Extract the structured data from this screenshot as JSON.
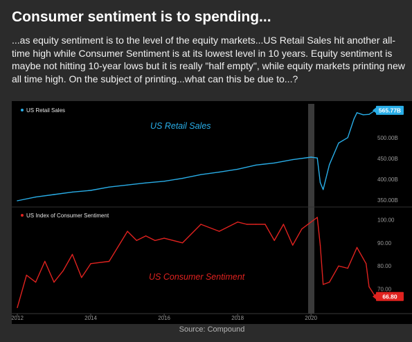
{
  "header": {
    "title": "Consumer sentiment is to spending...",
    "body": "...as equity sentiment is to the level of the equity markets...US Retail Sales hit another all-time high while Consumer Sentiment is at its lowest level in 10 years. Equity sentiment is maybe not hitting 10-year lows but it is really \"half empty\", while equity markets printing new all time high. On the subject of printing...what can this be due to...?"
  },
  "footer": {
    "source": "Source: Compound"
  },
  "colors": {
    "retail": "#29aee8",
    "sentiment": "#e0221f",
    "badge_retail": "#29aee8",
    "badge_sentiment": "#e0221f",
    "covid_band": "#3a3a3a",
    "axis_text": "#9a9a9a"
  },
  "chart_data": [
    {
      "type": "line",
      "legend": "US Retail Sales",
      "annotation": "US Retail Sales",
      "last_value_label": "565.77B",
      "y_ticks": [
        "350.00B",
        "400.00B",
        "450.00B",
        "500.00B"
      ],
      "y_tick_values": [
        350,
        400,
        450,
        500
      ],
      "ylim": [
        338,
        578
      ],
      "xlim": [
        2012.0,
        2021.75
      ],
      "x": [
        2012.0,
        2012.5,
        2013.0,
        2013.5,
        2014.0,
        2014.5,
        2015.0,
        2015.5,
        2016.0,
        2016.5,
        2017.0,
        2017.5,
        2018.0,
        2018.5,
        2019.0,
        2019.5,
        2020.0,
        2020.17,
        2020.25,
        2020.33,
        2020.5,
        2020.75,
        2021.0,
        2021.17,
        2021.25,
        2021.42,
        2021.58,
        2021.75
      ],
      "values": [
        348,
        357,
        363,
        369,
        373,
        381,
        386,
        391,
        395,
        402,
        411,
        417,
        424,
        434,
        439,
        447,
        453,
        451,
        392,
        375,
        435,
        487,
        500,
        545,
        560,
        555,
        556,
        565.77
      ],
      "units": "USD billions"
    },
    {
      "type": "line",
      "legend": "US Index of Consumer Sentiment",
      "annotation": "US Consumer Sentiment",
      "last_value_label": "66.80",
      "y_ticks": [
        "70.00",
        "80.00",
        "90.00",
        "100.00"
      ],
      "y_tick_values": [
        70,
        80,
        90,
        100
      ],
      "ylim": [
        60,
        104
      ],
      "xlim": [
        2012.0,
        2021.75
      ],
      "x": [
        2012.0,
        2012.25,
        2012.5,
        2012.75,
        2013.0,
        2013.25,
        2013.5,
        2013.75,
        2014.0,
        2014.5,
        2015.0,
        2015.25,
        2015.5,
        2015.75,
        2016.0,
        2016.5,
        2017.0,
        2017.5,
        2018.0,
        2018.25,
        2018.5,
        2018.75,
        2019.0,
        2019.25,
        2019.5,
        2019.75,
        2020.0,
        2020.17,
        2020.25,
        2020.33,
        2020.5,
        2020.75,
        2021.0,
        2021.25,
        2021.5,
        2021.58,
        2021.75
      ],
      "values": [
        62,
        76,
        73,
        82,
        73,
        78,
        85,
        75,
        81,
        82,
        95,
        91,
        93,
        91,
        92,
        90,
        98,
        95,
        99,
        98,
        98,
        98,
        91,
        98,
        89,
        96,
        99,
        101,
        89,
        72,
        73,
        80,
        79,
        88,
        81,
        71,
        66.8
      ],
      "units": "index"
    }
  ],
  "x_axis": {
    "ticks": [
      "2012",
      "2014",
      "2016",
      "2018",
      "2020"
    ],
    "tick_values": [
      2012,
      2014,
      2016,
      2018,
      2020
    ]
  }
}
